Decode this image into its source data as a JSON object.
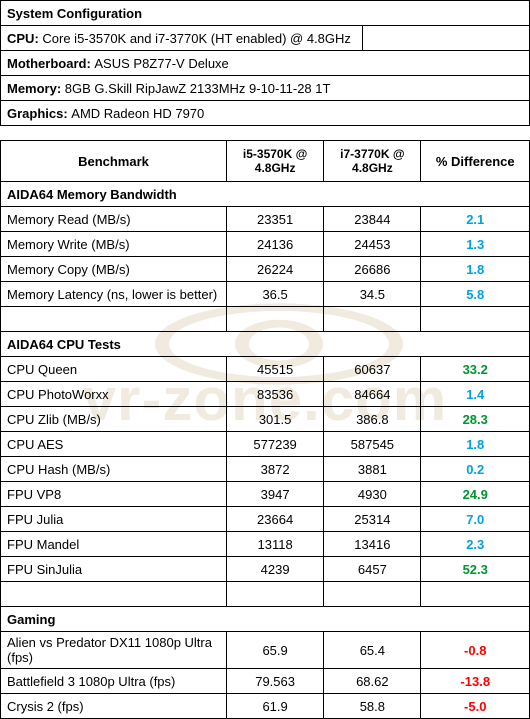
{
  "colors": {
    "diff_blue": "#00a2e1",
    "diff_green": "#009530",
    "diff_red": "#ff0000",
    "border": "#000000",
    "watermark": "#f0eadf"
  },
  "watermark_text": "vr-zone.com",
  "config": {
    "title": "System Configuration",
    "rows": [
      {
        "label": "CPU:",
        "value": "Core i5-3570K and i7-3770K (HT enabled) @ 4.8GHz",
        "has_blank_cell": true
      },
      {
        "label": "Motherboard:",
        "value": "ASUS P8Z77-V Deluxe",
        "has_blank_cell": false
      },
      {
        "label": "Memory:",
        "value": "8GB G.Skill RipJawZ 2133MHz 9-10-11-28 1T",
        "has_blank_cell": false
      },
      {
        "label": "Graphics:",
        "value": "AMD Radeon HD 7970",
        "has_blank_cell": false
      }
    ]
  },
  "bench_header": {
    "col1": "Benchmark",
    "col2": "i5-3570K @ 4.8GHz",
    "col3": "i7-3770K @ 4.8GHz",
    "col4": "% Difference"
  },
  "sections": [
    {
      "title": "AIDA64 Memory Bandwidth",
      "rows": [
        {
          "name": "Memory Read (MB/s)",
          "v1": "23351",
          "v2": "23844",
          "diff": "2.1",
          "color": "diff_blue"
        },
        {
          "name": "Memory Write (MB/s)",
          "v1": "24136",
          "v2": "24453",
          "diff": "1.3",
          "color": "diff_blue"
        },
        {
          "name": "Memory Copy (MB/s)",
          "v1": "26224",
          "v2": "26686",
          "diff": "1.8",
          "color": "diff_blue"
        },
        {
          "name": "Memory Latency (ns, lower is better)",
          "v1": "36.5",
          "v2": "34.5",
          "diff": "5.8",
          "color": "diff_blue"
        }
      ]
    },
    {
      "title": "AIDA64 CPU Tests",
      "pre_blank": true,
      "rows": [
        {
          "name": "CPU Queen",
          "v1": "45515",
          "v2": "60637",
          "diff": "33.2",
          "color": "diff_green"
        },
        {
          "name": "CPU PhotoWorxx",
          "v1": "83536",
          "v2": "84664",
          "diff": "1.4",
          "color": "diff_blue"
        },
        {
          "name": "CPU Zlib (MB/s)",
          "v1": "301.5",
          "v2": "386.8",
          "diff": "28.3",
          "color": "diff_green"
        },
        {
          "name": "CPU AES",
          "v1": "577239",
          "v2": "587545",
          "diff": "1.8",
          "color": "diff_blue"
        },
        {
          "name": "CPU Hash (MB/s)",
          "v1": "3872",
          "v2": "3881",
          "diff": "0.2",
          "color": "diff_blue"
        },
        {
          "name": "FPU VP8",
          "v1": "3947",
          "v2": "4930",
          "diff": "24.9",
          "color": "diff_green"
        },
        {
          "name": "FPU Julia",
          "v1": "23664",
          "v2": "25314",
          "diff": "7.0",
          "color": "diff_blue"
        },
        {
          "name": "FPU Mandel",
          "v1": "13118",
          "v2": "13416",
          "diff": "2.3",
          "color": "diff_blue"
        },
        {
          "name": "FPU SinJulia",
          "v1": "4239",
          "v2": "6457",
          "diff": "52.3",
          "color": "diff_green"
        }
      ]
    },
    {
      "title": "Gaming",
      "pre_blank": true,
      "rows": [
        {
          "name": "Alien vs Predator DX11 1080p Ultra (fps)",
          "v1": "65.9",
          "v2": "65.4",
          "diff": "-0.8",
          "color": "diff_red"
        },
        {
          "name": "Battlefield 3 1080p Ultra (fps)",
          "v1": "79.563",
          "v2": "68.62",
          "diff": "-13.8",
          "color": "diff_red"
        },
        {
          "name": "Crysis 2 (fps)",
          "v1": "61.9",
          "v2": "58.8",
          "diff": "-5.0",
          "color": "diff_red"
        }
      ]
    }
  ]
}
